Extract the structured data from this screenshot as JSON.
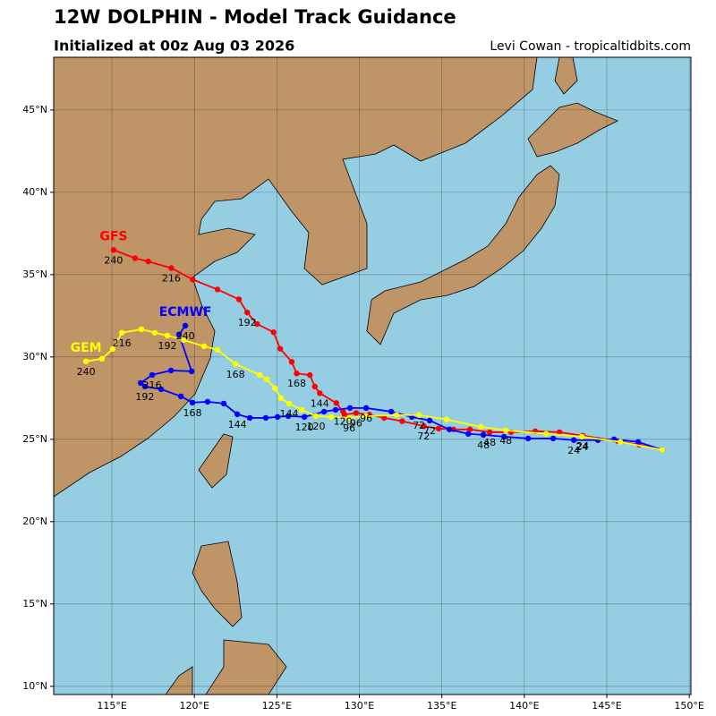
{
  "chart_data": {
    "type": "track-map",
    "title": "12W DOLPHIN - Model Track Guidance",
    "subtitle": "Initialized at 00z Aug 03 2026",
    "credit": "Levi Cowan - tropicaltidbits.com",
    "xlim": [
      111.47,
      150.1
    ],
    "ylim": [
      9.5,
      48.2
    ],
    "xticks": [
      {
        "value": 115,
        "label": "115°E"
      },
      {
        "value": 120,
        "label": "120°E"
      },
      {
        "value": 125,
        "label": "125°E"
      },
      {
        "value": 130,
        "label": "130°E"
      },
      {
        "value": 135,
        "label": "135°E"
      },
      {
        "value": 140,
        "label": "140°E"
      },
      {
        "value": 145,
        "label": "145°E"
      },
      {
        "value": 150,
        "label": "150°E"
      }
    ],
    "yticks": [
      {
        "value": 10,
        "label": "10°N"
      },
      {
        "value": 15,
        "label": "15°N"
      },
      {
        "value": 20,
        "label": "20°N"
      },
      {
        "value": 25,
        "label": "25°N"
      },
      {
        "value": 30,
        "label": "30°N"
      },
      {
        "value": 35,
        "label": "35°N"
      },
      {
        "value": 40,
        "label": "40°N"
      },
      {
        "value": 45,
        "label": "45°N"
      }
    ],
    "grid": true,
    "series": [
      {
        "name": "GFS",
        "color": "#ff0000",
        "x": [
          148.37,
          146.96,
          145.66,
          143.54,
          142.13,
          140.66,
          139.2,
          137.9,
          136.7,
          135.7,
          134.8,
          133.9,
          132.6,
          131.5,
          130.6,
          129.8,
          129.1,
          129.0,
          128.6,
          127.6,
          127.3,
          127.0,
          126.2,
          125.9,
          125.2,
          124.8,
          123.8,
          123.2,
          122.7,
          121.4,
          119.9,
          118.6,
          117.2,
          116.4,
          115.1
        ],
        "y": [
          24.35,
          24.67,
          24.89,
          25.22,
          25.43,
          25.49,
          25.43,
          25.43,
          25.6,
          25.6,
          25.65,
          25.8,
          26.1,
          26.3,
          26.5,
          26.6,
          26.5,
          26.7,
          27.2,
          27.8,
          28.2,
          28.9,
          29.0,
          29.7,
          30.5,
          31.5,
          32.0,
          32.7,
          33.5,
          34.1,
          34.7,
          35.4,
          35.8,
          36.0,
          36.5
        ],
        "point_labels": [
          null,
          null,
          null,
          "24",
          null,
          null,
          null,
          "48",
          null,
          null,
          null,
          "72",
          null,
          null,
          null,
          "96",
          null,
          "120",
          null,
          "144",
          null,
          null,
          "168",
          null,
          null,
          null,
          null,
          "192",
          null,
          null,
          null,
          "216",
          null,
          null,
          "240"
        ]
      },
      {
        "name": "ECMWF",
        "color": "#0000ff",
        "x": [
          148.37,
          146.9,
          145.44,
          144.46,
          143.0,
          141.75,
          140.23,
          138.77,
          137.52,
          136.6,
          135.46,
          134.26,
          133.18,
          131.93,
          130.41,
          129.43,
          128.56,
          127.86,
          126.67,
          125.69,
          125.04,
          124.33,
          123.36,
          122.6,
          121.78,
          120.8,
          119.88,
          119.18,
          117.98,
          117.0,
          116.74,
          117.44,
          118.58,
          119.83,
          119.07,
          119.45
        ],
        "y": [
          24.35,
          24.84,
          25.0,
          24.95,
          24.95,
          25.05,
          25.05,
          25.16,
          25.27,
          25.33,
          25.6,
          26.14,
          26.36,
          26.68,
          26.9,
          26.9,
          26.79,
          26.68,
          26.36,
          26.41,
          26.36,
          26.3,
          26.3,
          26.52,
          27.17,
          27.28,
          27.23,
          27.61,
          28.04,
          28.21,
          28.42,
          28.91,
          29.18,
          29.13,
          31.36,
          31.9
        ],
        "point_labels": [
          null,
          null,
          null,
          null,
          "24",
          null,
          null,
          null,
          "48",
          null,
          null,
          "72",
          null,
          null,
          "96",
          null,
          null,
          null,
          "120",
          null,
          null,
          null,
          null,
          "144",
          null,
          null,
          "168",
          null,
          null,
          "192",
          null,
          "216",
          null,
          null,
          null,
          "240"
        ]
      },
      {
        "name": "GEM",
        "color": "#ffff00",
        "x": [
          148.37,
          145.82,
          143.49,
          141.32,
          138.88,
          137.35,
          135.29,
          133.61,
          132.25,
          130.41,
          129.38,
          128.29,
          127.37,
          126.5,
          125.74,
          125.25,
          124.88,
          124.39,
          123.95,
          122.49,
          121.4,
          120.59,
          119.34,
          118.36,
          117.6,
          116.79,
          115.6,
          115.05,
          114.4,
          113.43
        ],
        "y": [
          24.35,
          24.84,
          25.16,
          25.33,
          25.54,
          25.76,
          26.2,
          26.47,
          26.47,
          26.41,
          26.3,
          26.36,
          26.41,
          26.79,
          27.17,
          27.5,
          28.1,
          28.64,
          28.91,
          29.57,
          30.43,
          30.65,
          31.03,
          31.3,
          31.47,
          31.68,
          31.47,
          30.49,
          29.89,
          29.73
        ],
        "point_labels": [
          null,
          null,
          "24",
          null,
          "48",
          null,
          null,
          "72",
          null,
          null,
          "96",
          null,
          "120",
          null,
          "144",
          null,
          null,
          null,
          null,
          "168",
          null,
          null,
          null,
          "192",
          null,
          null,
          "216",
          null,
          null,
          "240"
        ]
      }
    ]
  }
}
